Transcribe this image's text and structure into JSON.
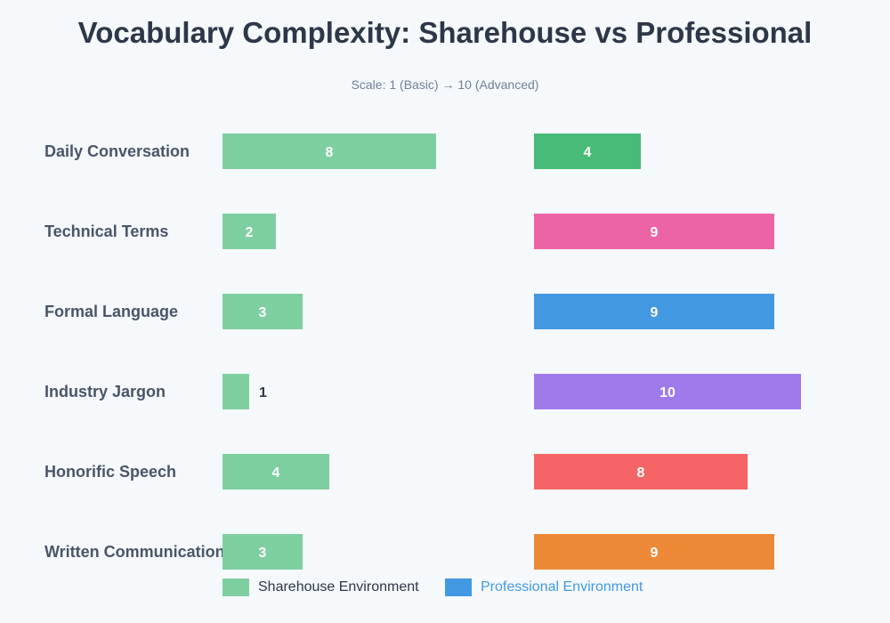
{
  "chart_data": {
    "type": "bar",
    "title": "Vocabulary Complexity: Sharehouse vs Professional",
    "subtitle": "Scale: 1 (Basic) → 10 (Advanced)",
    "categories": [
      "Daily Conversation",
      "Technical Terms",
      "Formal Language",
      "Industry Jargon",
      "Honorific Speech",
      "Written Communication"
    ],
    "xlim": [
      0,
      10
    ],
    "grid": false,
    "legend_placement": "bottom",
    "series": [
      {
        "name": "Sharehouse Environment",
        "values": [
          8,
          2,
          3,
          1,
          4,
          3
        ],
        "color": "#7ecfa0"
      },
      {
        "name": "Professional Environment",
        "values": [
          4,
          9,
          9,
          10,
          8,
          9
        ],
        "colors": [
          "#48bb78",
          "#ed64a6",
          "#4299e1",
          "#9f7aea",
          "#f56565",
          "#ed8936"
        ],
        "legend_color": "#4299e1"
      }
    ]
  }
}
